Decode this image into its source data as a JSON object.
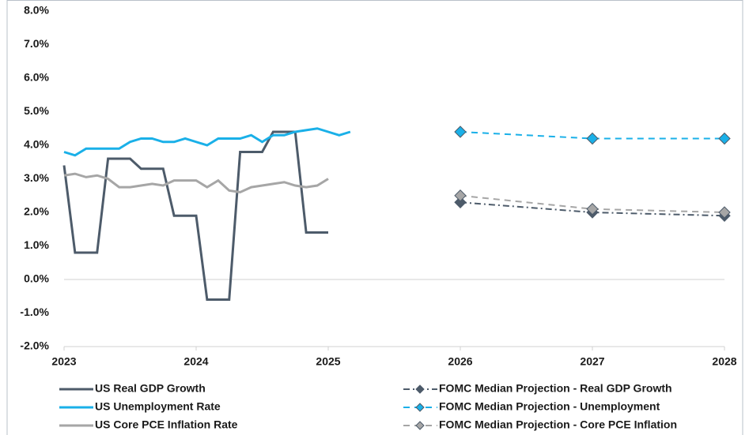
{
  "chart_data": {
    "type": "line",
    "xlim": [
      2023,
      2028
    ],
    "xticks": [
      2023,
      2024,
      2025,
      2026,
      2027,
      2028
    ],
    "ylim": [
      -2,
      8
    ],
    "yticks": [
      {
        "value": -2,
        "label": "-2.0%"
      },
      {
        "value": -1,
        "label": "-1.0%"
      },
      {
        "value": 0,
        "label": "0.0%"
      },
      {
        "value": 1,
        "label": "1.0%"
      },
      {
        "value": 2,
        "label": "2.0%"
      },
      {
        "value": 3,
        "label": "3.0%"
      },
      {
        "value": 4,
        "label": "4.0%"
      },
      {
        "value": 5,
        "label": "5.0%"
      },
      {
        "value": 6,
        "label": "6.0%"
      },
      {
        "value": 7,
        "label": "7.0%"
      },
      {
        "value": 8,
        "label": "8.0%"
      }
    ],
    "grid": false,
    "series": [
      {
        "name": "US Real GDP Growth",
        "color": "#4d5b6a",
        "dash": "solid",
        "x": [
          2023,
          2023.083,
          2023.167,
          2023.25,
          2023.333,
          2023.417,
          2023.5,
          2023.583,
          2023.667,
          2023.75,
          2023.833,
          2023.917,
          2024,
          2024.083,
          2024.167,
          2024.25,
          2024.333,
          2024.417,
          2024.5,
          2024.583,
          2024.667,
          2024.75,
          2024.833,
          2024.917,
          2025
        ],
        "values": [
          3.4,
          0.8,
          0.8,
          0.8,
          3.6,
          3.6,
          3.6,
          3.3,
          3.3,
          3.3,
          1.9,
          1.9,
          1.9,
          -0.6,
          -0.6,
          -0.6,
          3.8,
          3.8,
          3.8,
          4.4,
          4.4,
          4.4,
          1.4,
          1.4,
          1.4
        ]
      },
      {
        "name": "US Unemployment Rate",
        "color": "#1ab0e8",
        "dash": "solid",
        "x": [
          2023,
          2023.083,
          2023.167,
          2023.25,
          2023.333,
          2023.417,
          2023.5,
          2023.583,
          2023.667,
          2023.75,
          2023.833,
          2023.917,
          2024,
          2024.083,
          2024.167,
          2024.25,
          2024.333,
          2024.417,
          2024.5,
          2024.583,
          2024.667,
          2024.75,
          2024.833,
          2024.917,
          2025,
          2025.083,
          2025.167
        ],
        "values": [
          3.8,
          3.7,
          3.9,
          3.9,
          3.9,
          3.9,
          4.1,
          4.2,
          4.2,
          4.1,
          4.1,
          4.2,
          4.1,
          4.0,
          4.2,
          4.2,
          4.2,
          4.3,
          4.1,
          4.3,
          4.3,
          4.4,
          4.45,
          4.5,
          4.4,
          4.3,
          4.4
        ]
      },
      {
        "name": "US Core PCE Inflation Rate",
        "color": "#a6a6a6",
        "dash": "solid",
        "x": [
          2023,
          2023.083,
          2023.167,
          2023.25,
          2023.333,
          2023.417,
          2023.5,
          2023.583,
          2023.667,
          2023.75,
          2023.833,
          2023.917,
          2024,
          2024.083,
          2024.167,
          2024.25,
          2024.333,
          2024.417,
          2024.5,
          2024.583,
          2024.667,
          2024.75,
          2024.833,
          2024.917,
          2025
        ],
        "values": [
          3.1,
          3.15,
          3.05,
          3.1,
          3.0,
          2.75,
          2.75,
          2.8,
          2.85,
          2.8,
          2.95,
          2.95,
          2.95,
          2.75,
          2.95,
          2.65,
          2.6,
          2.75,
          2.8,
          2.85,
          2.9,
          2.8,
          2.75,
          2.8,
          3.0
        ]
      },
      {
        "name": "FOMC Median Projection - Real GDP Growth",
        "color": "#4d5b6a",
        "dash": "dashdot",
        "marker": "diamond",
        "x": [
          2026,
          2027,
          2028
        ],
        "values": [
          2.3,
          2.0,
          1.9
        ]
      },
      {
        "name": "FOMC Median Projection - Unemployment",
        "color": "#1ab0e8",
        "dash": "dashed",
        "marker": "diamond",
        "x": [
          2026,
          2027,
          2028
        ],
        "values": [
          4.4,
          4.2,
          4.2
        ]
      },
      {
        "name": "FOMC Median Projection - Core PCE Inflation",
        "color": "#a6a6a6",
        "dash": "dashed",
        "marker": "diamond",
        "x": [
          2026,
          2027,
          2028
        ],
        "values": [
          2.5,
          2.1,
          2.0
        ]
      }
    ]
  }
}
